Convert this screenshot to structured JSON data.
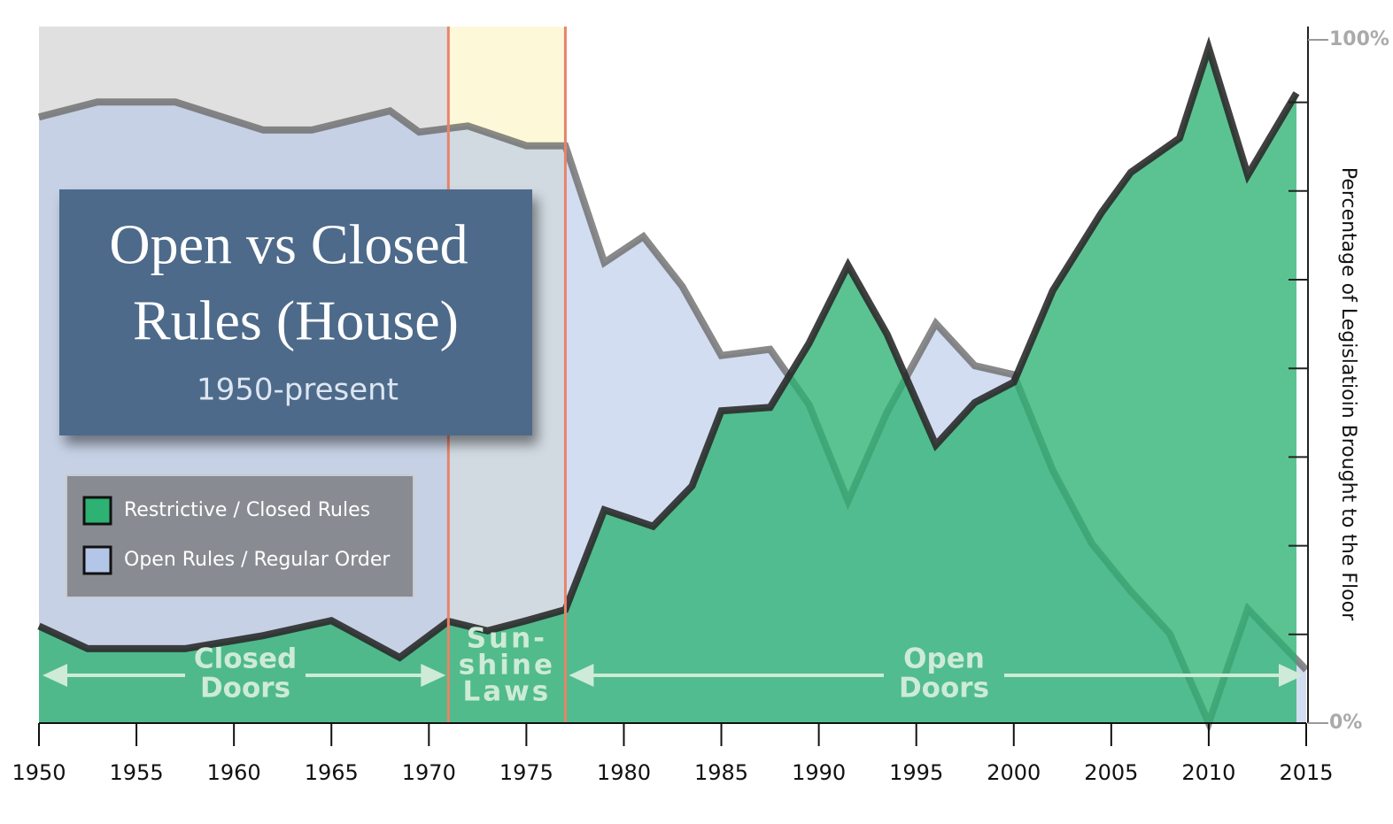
{
  "chart_data": {
    "type": "area",
    "title": [
      "Open vs Closed",
      "Rules (House)"
    ],
    "subtitle": "1950-present",
    "y_axis_label": "Percentage of Legislatioin Brought to the Floor",
    "xlim": [
      1950,
      2015
    ],
    "xticks": [
      1950,
      1955,
      1960,
      1965,
      1970,
      1975,
      1980,
      1985,
      1990,
      1995,
      2000,
      2005,
      2010,
      2015
    ],
    "ylim": [
      0,
      100
    ],
    "yticks": [
      {
        "value": 0,
        "label": "0%"
      },
      {
        "value": 100,
        "label": "100%"
      }
    ],
    "legend": "upper left",
    "series": [
      {
        "name": "Open Rules / Regular Order",
        "color": "#b4c6e7",
        "line_color": "#6b6b6b",
        "x": [
          1950,
          1953,
          1957,
          1961.5,
          1964,
          1968,
          1969.5,
          1972,
          1975,
          1977,
          1979,
          1981,
          1983,
          1985,
          1987.5,
          1989.5,
          1991.5,
          1993.5,
          1996,
          1998,
          2000,
          2002,
          2004,
          2006,
          2008,
          2010,
          2012,
          2015
        ],
        "values": [
          88.7,
          90.9,
          90.9,
          86.8,
          86.8,
          89.6,
          86.5,
          87.4,
          84.5,
          84.5,
          67.4,
          71.2,
          63.9,
          53.8,
          54.7,
          46.6,
          32.5,
          45.5,
          58.5,
          52.3,
          51.0,
          37.0,
          26.3,
          19.3,
          13.1,
          0,
          16.7,
          7.8
        ]
      },
      {
        "name": "Restrictive / Closed Rules",
        "color": "#2db273",
        "line_color": "#2b2b2b",
        "x": [
          1950,
          1952.5,
          1957.5,
          1961.5,
          1965,
          1968.5,
          1971,
          1973,
          1975,
          1977,
          1979,
          1981.5,
          1983.5,
          1985,
          1987.5,
          1989.5,
          1991.5,
          1993.5,
          1996,
          1998,
          2000,
          2002,
          2004.5,
          2006,
          2008.5,
          2010,
          2012,
          2014.5
        ],
        "values": [
          14.2,
          10.9,
          10.9,
          12.8,
          15.0,
          9.6,
          14.9,
          13.5,
          15.0,
          16.6,
          31.2,
          28.8,
          34.7,
          45.7,
          46.2,
          55.6,
          67.0,
          56.9,
          40.7,
          46.9,
          49.9,
          63.3,
          74.7,
          80.6,
          85.6,
          98.8,
          80.2,
          92.2
        ]
      }
    ],
    "eras": [
      {
        "label": [
          "Closed",
          "Doors"
        ],
        "start": 1950,
        "end": 1971,
        "color": "#e0e0e0"
      },
      {
        "label": [
          "Sun-",
          "shine",
          "Laws"
        ],
        "start": 1971,
        "end": 1977,
        "color": "#fdf8d8"
      },
      {
        "label": [
          "Open",
          "Doors"
        ],
        "start": 1977,
        "end": 2015
      }
    ]
  }
}
